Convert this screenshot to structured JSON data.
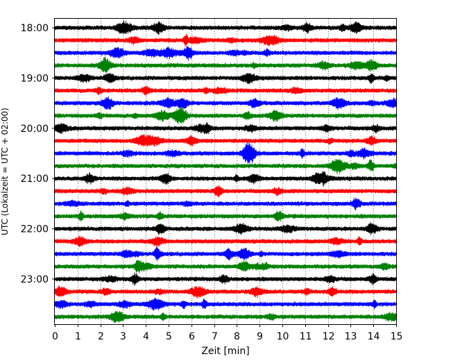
{
  "chart_data": {
    "type": "line",
    "title": "",
    "xlabel": "Zeit  [min]",
    "ylabel": "UTC (Lokalzeit = UTC + 02:00)",
    "xlim": [
      0,
      15
    ],
    "x_ticks": [
      0,
      1,
      2,
      3,
      4,
      5,
      6,
      7,
      8,
      9,
      10,
      11,
      12,
      13,
      14,
      15
    ],
    "x_tick_labels": [
      "0",
      "1",
      "2",
      "3",
      "4",
      "5",
      "6",
      "7",
      "8",
      "9",
      "10",
      "11",
      "12",
      "13",
      "14",
      "15"
    ],
    "y_tick_labels": [
      "18:00",
      "19:00",
      "20:00",
      "21:00",
      "22:00",
      "23:00"
    ],
    "grid": "vertical dotted",
    "trace_colors": [
      "#000000",
      "#ff0000",
      "#0000ff",
      "#008000"
    ],
    "traces": [
      {
        "start": "18:00",
        "color": "#000000"
      },
      {
        "start": "18:15",
        "color": "#ff0000"
      },
      {
        "start": "18:30",
        "color": "#0000ff"
      },
      {
        "start": "18:45",
        "color": "#008000"
      },
      {
        "start": "19:00",
        "color": "#000000"
      },
      {
        "start": "19:15",
        "color": "#ff0000"
      },
      {
        "start": "19:30",
        "color": "#0000ff"
      },
      {
        "start": "19:45",
        "color": "#008000"
      },
      {
        "start": "20:00",
        "color": "#000000"
      },
      {
        "start": "20:15",
        "color": "#ff0000"
      },
      {
        "start": "20:30",
        "color": "#0000ff"
      },
      {
        "start": "20:45",
        "color": "#008000"
      },
      {
        "start": "21:00",
        "color": "#000000"
      },
      {
        "start": "21:15",
        "color": "#ff0000"
      },
      {
        "start": "21:30",
        "color": "#0000ff"
      },
      {
        "start": "21:45",
        "color": "#008000"
      },
      {
        "start": "22:00",
        "color": "#000000"
      },
      {
        "start": "22:15",
        "color": "#ff0000"
      },
      {
        "start": "22:30",
        "color": "#0000ff"
      },
      {
        "start": "22:45",
        "color": "#008000"
      },
      {
        "start": "23:00",
        "color": "#000000"
      },
      {
        "start": "23:15",
        "color": "#ff0000"
      },
      {
        "start": "23:30",
        "color": "#0000ff"
      },
      {
        "start": "23:45",
        "color": "#008000"
      }
    ]
  }
}
